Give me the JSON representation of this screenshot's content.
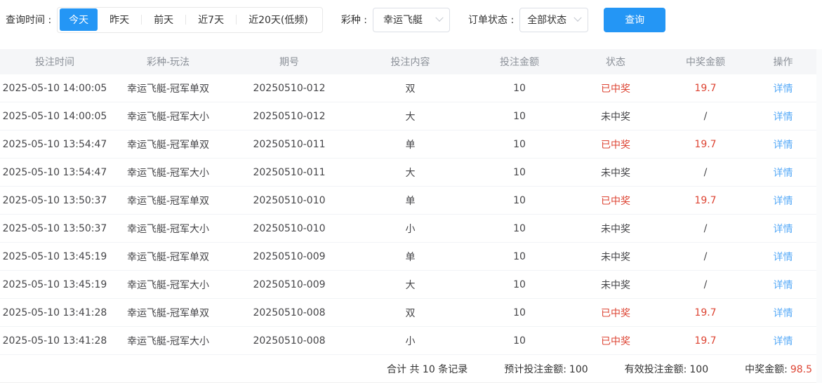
{
  "colors": {
    "accent": "#2496f5",
    "link": "#55a9f7",
    "red": "#dd4433"
  },
  "filter_bar": {
    "time_label": "查询时间 :",
    "time_options": [
      {
        "label": "今天",
        "active": true
      },
      {
        "label": "昨天",
        "active": false
      },
      {
        "label": "前天",
        "active": false
      },
      {
        "label": "近7天",
        "active": false
      },
      {
        "label": "近20天(低频)",
        "active": false
      }
    ],
    "lottery_label": "彩种 :",
    "lottery_value": "幸运飞艇",
    "status_label": "订单状态 :",
    "status_value": "全部状态",
    "query_button": "查询"
  },
  "table": {
    "columns": [
      "投注时间",
      "彩种-玩法",
      "期号",
      "投注内容",
      "投注金额",
      "状态",
      "中奖金额",
      "操作"
    ],
    "rows": [
      {
        "time": "2025-05-10 14:00:05",
        "play": "幸运飞艇-冠军单双",
        "issue": "20250510-012",
        "content": "双",
        "amount": "10",
        "status": "已中奖",
        "won": true,
        "prize": "19.7",
        "action": "详情"
      },
      {
        "time": "2025-05-10 14:00:05",
        "play": "幸运飞艇-冠军大小",
        "issue": "20250510-012",
        "content": "大",
        "amount": "10",
        "status": "未中奖",
        "won": false,
        "prize": "/",
        "action": "详情"
      },
      {
        "time": "2025-05-10 13:54:47",
        "play": "幸运飞艇-冠军单双",
        "issue": "20250510-011",
        "content": "单",
        "amount": "10",
        "status": "已中奖",
        "won": true,
        "prize": "19.7",
        "action": "详情"
      },
      {
        "time": "2025-05-10 13:54:47",
        "play": "幸运飞艇-冠军大小",
        "issue": "20250510-011",
        "content": "大",
        "amount": "10",
        "status": "未中奖",
        "won": false,
        "prize": "/",
        "action": "详情"
      },
      {
        "time": "2025-05-10 13:50:37",
        "play": "幸运飞艇-冠军单双",
        "issue": "20250510-010",
        "content": "单",
        "amount": "10",
        "status": "已中奖",
        "won": true,
        "prize": "19.7",
        "action": "详情"
      },
      {
        "time": "2025-05-10 13:50:37",
        "play": "幸运飞艇-冠军大小",
        "issue": "20250510-010",
        "content": "小",
        "amount": "10",
        "status": "未中奖",
        "won": false,
        "prize": "/",
        "action": "详情"
      },
      {
        "time": "2025-05-10 13:45:19",
        "play": "幸运飞艇-冠军单双",
        "issue": "20250510-009",
        "content": "单",
        "amount": "10",
        "status": "未中奖",
        "won": false,
        "prize": "/",
        "action": "详情"
      },
      {
        "time": "2025-05-10 13:45:19",
        "play": "幸运飞艇-冠军大小",
        "issue": "20250510-009",
        "content": "大",
        "amount": "10",
        "status": "未中奖",
        "won": false,
        "prize": "/",
        "action": "详情"
      },
      {
        "time": "2025-05-10 13:41:28",
        "play": "幸运飞艇-冠军单双",
        "issue": "20250510-008",
        "content": "双",
        "amount": "10",
        "status": "已中奖",
        "won": true,
        "prize": "19.7",
        "action": "详情"
      },
      {
        "time": "2025-05-10 13:41:28",
        "play": "幸运飞艇-冠军大小",
        "issue": "20250510-008",
        "content": "小",
        "amount": "10",
        "status": "已中奖",
        "won": true,
        "prize": "19.7",
        "action": "详情"
      }
    ]
  },
  "footer": {
    "total_text": "合计 共 10 条记录",
    "expected_label": "预计投注金额:",
    "expected_value": "100",
    "valid_label": "有效投注金额:",
    "valid_value": "100",
    "prize_label": "中奖金额:",
    "prize_value": "98.5"
  }
}
